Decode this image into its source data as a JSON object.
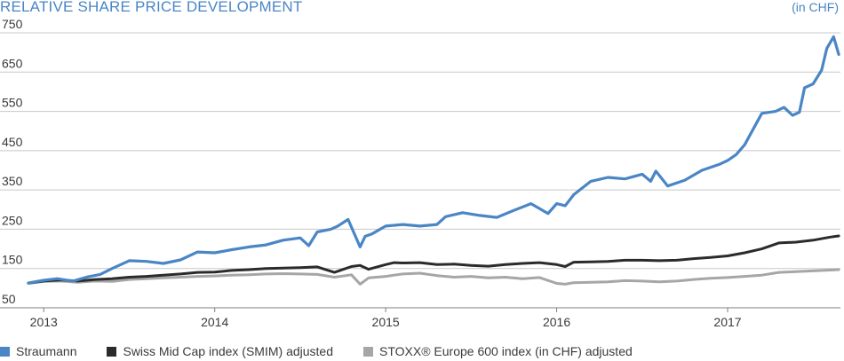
{
  "header": {
    "title": "RELATIVE SHARE PRICE DEVELOPMENT",
    "unit": "(in CHF)"
  },
  "colors": {
    "accent": "#4a86c5",
    "grid": "#c8c8c8",
    "axis": "#7f7f7f"
  },
  "chart_data": {
    "type": "line",
    "title": "RELATIVE SHARE PRICE DEVELOPMENT",
    "unit_label": "(in CHF)",
    "xlabel": "",
    "ylabel": "",
    "ylim": [
      50,
      750
    ],
    "y_ticks": [
      50,
      150,
      250,
      350,
      450,
      550,
      650,
      750
    ],
    "xlim": [
      2012.9,
      2017.66
    ],
    "x_ticks": [
      {
        "value": 2013,
        "label": "2013"
      },
      {
        "value": 2014,
        "label": "2014"
      },
      {
        "value": 2015,
        "label": "2015"
      },
      {
        "value": 2016,
        "label": "2016"
      },
      {
        "value": 2017,
        "label": "2017"
      }
    ],
    "grid": "horizontal",
    "legend_position": "bottom",
    "series": [
      {
        "name": "Straumann",
        "color": "#4a86c5",
        "x": [
          2012.91,
          2013.0,
          2013.08,
          2013.17,
          2013.25,
          2013.33,
          2013.4,
          2013.5,
          2013.6,
          2013.7,
          2013.8,
          2013.9,
          2014.0,
          2014.1,
          2014.2,
          2014.3,
          2014.4,
          2014.5,
          2014.55,
          2014.6,
          2014.68,
          2014.72,
          2014.78,
          2014.85,
          2014.88,
          2014.92,
          2015.0,
          2015.1,
          2015.2,
          2015.3,
          2015.35,
          2015.45,
          2015.55,
          2015.65,
          2015.75,
          2015.85,
          2015.95,
          2016.0,
          2016.05,
          2016.1,
          2016.2,
          2016.3,
          2016.4,
          2016.5,
          2016.55,
          2016.58,
          2016.65,
          2016.75,
          2016.85,
          2016.95,
          2017.0,
          2017.05,
          2017.1,
          2017.2,
          2017.28,
          2017.33,
          2017.38,
          2017.42,
          2017.45,
          2017.5,
          2017.55,
          2017.58,
          2017.62,
          2017.65
        ],
        "values": [
          113,
          120,
          124,
          118,
          128,
          135,
          150,
          170,
          168,
          163,
          172,
          192,
          190,
          198,
          205,
          210,
          222,
          228,
          208,
          243,
          250,
          258,
          275,
          205,
          232,
          238,
          258,
          262,
          258,
          262,
          282,
          292,
          285,
          280,
          298,
          315,
          290,
          315,
          310,
          338,
          372,
          382,
          378,
          390,
          372,
          398,
          360,
          375,
          400,
          415,
          425,
          440,
          465,
          545,
          550,
          560,
          540,
          548,
          610,
          620,
          655,
          710,
          740,
          695
        ]
      },
      {
        "name": "Swiss Mid Cap index (SMIM) adjusted",
        "color": "#2b2b2b",
        "x": [
          2012.91,
          2013.0,
          2013.1,
          2013.2,
          2013.3,
          2013.4,
          2013.5,
          2013.6,
          2013.7,
          2013.8,
          2013.9,
          2014.0,
          2014.1,
          2014.2,
          2014.3,
          2014.4,
          2014.5,
          2014.6,
          2014.7,
          2014.8,
          2014.85,
          2014.9,
          2015.0,
          2015.05,
          2015.1,
          2015.2,
          2015.3,
          2015.4,
          2015.5,
          2015.6,
          2015.7,
          2015.8,
          2015.9,
          2016.0,
          2016.05,
          2016.1,
          2016.2,
          2016.3,
          2016.4,
          2016.5,
          2016.6,
          2016.7,
          2016.8,
          2016.9,
          2017.0,
          2017.1,
          2017.2,
          2017.3,
          2017.4,
          2017.5,
          2017.6,
          2017.65
        ],
        "values": [
          113,
          118,
          121,
          118,
          122,
          124,
          128,
          130,
          133,
          136,
          140,
          141,
          145,
          147,
          150,
          151,
          152,
          154,
          140,
          155,
          158,
          148,
          160,
          165,
          164,
          165,
          160,
          161,
          158,
          156,
          160,
          163,
          165,
          160,
          155,
          166,
          167,
          168,
          171,
          171,
          170,
          171,
          175,
          178,
          182,
          190,
          200,
          215,
          217,
          222,
          230,
          233
        ]
      },
      {
        "name": "STOXX® Europe 600 index (in CHF) adjusted",
        "color": "#a6a6a6",
        "x": [
          2012.91,
          2013.0,
          2013.1,
          2013.2,
          2013.3,
          2013.4,
          2013.5,
          2013.6,
          2013.7,
          2013.8,
          2013.9,
          2014.0,
          2014.1,
          2014.2,
          2014.3,
          2014.4,
          2014.5,
          2014.6,
          2014.7,
          2014.8,
          2014.85,
          2014.9,
          2015.0,
          2015.05,
          2015.1,
          2015.2,
          2015.3,
          2015.4,
          2015.5,
          2015.6,
          2015.7,
          2015.8,
          2015.9,
          2016.0,
          2016.05,
          2016.1,
          2016.2,
          2016.3,
          2016.4,
          2016.5,
          2016.6,
          2016.7,
          2016.8,
          2016.9,
          2017.0,
          2017.1,
          2017.2,
          2017.3,
          2017.4,
          2017.5,
          2017.6,
          2017.65
        ],
        "values": [
          112,
          117,
          118,
          115,
          118,
          117,
          122,
          124,
          126,
          128,
          130,
          131,
          133,
          134,
          136,
          137,
          136,
          135,
          128,
          134,
          110,
          126,
          130,
          133,
          136,
          138,
          132,
          128,
          130,
          126,
          128,
          124,
          127,
          112,
          110,
          114,
          115,
          116,
          119,
          118,
          116,
          118,
          122,
          125,
          127,
          130,
          133,
          140,
          142,
          144,
          146,
          147
        ]
      }
    ]
  }
}
